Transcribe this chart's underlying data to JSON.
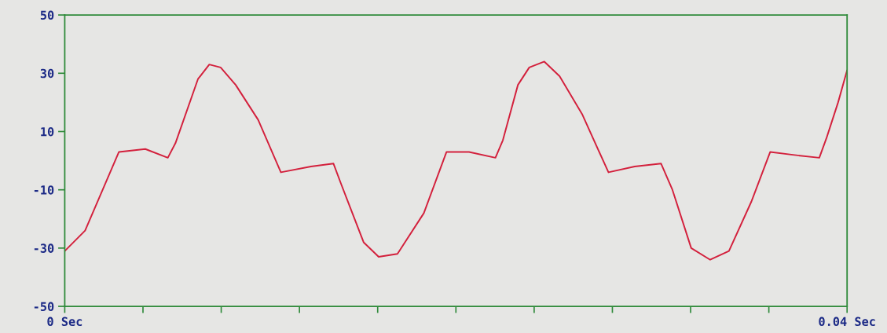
{
  "chart_data": {
    "type": "line",
    "grid": false,
    "marker": "none",
    "line_style": "solid",
    "xlim": [
      0,
      0.04
    ],
    "ylim": [
      -50,
      50
    ],
    "xticks": [
      {
        "value": 0,
        "label": "0 Sec"
      },
      {
        "value": 0.004,
        "label": null
      },
      {
        "value": 0.008,
        "label": null
      },
      {
        "value": 0.012,
        "label": null
      },
      {
        "value": 0.016,
        "label": null
      },
      {
        "value": 0.02,
        "label": null
      },
      {
        "value": 0.024,
        "label": null
      },
      {
        "value": 0.028,
        "label": null
      },
      {
        "value": 0.032,
        "label": null
      },
      {
        "value": 0.036,
        "label": null
      },
      {
        "value": 0.04,
        "label": "0.04 Sec"
      }
    ],
    "yticks": [
      -50,
      -30,
      -10,
      10,
      30,
      50
    ],
    "series": [
      {
        "color": "#d3203c",
        "x": [
          0,
          0.00104,
          0.00277,
          0.00412,
          0.00527,
          0.00566,
          0.00681,
          0.00739,
          0.00797,
          0.00874,
          0.00989,
          0.01105,
          0.01259,
          0.01374,
          0.01413,
          0.01528,
          0.01605,
          0.01701,
          0.01836,
          0.01952,
          0.02067,
          0.02202,
          0.0224,
          0.02317,
          0.02375,
          0.02452,
          0.0253,
          0.02645,
          0.0278,
          0.02914,
          0.03049,
          0.03107,
          0.03203,
          0.033,
          0.03396,
          0.03511,
          0.03607,
          0.03723,
          0.03858,
          0.03896,
          0.03954,
          0.04
        ],
        "values": [
          -31,
          -24,
          3,
          4,
          1,
          6,
          28,
          33,
          32,
          26,
          14,
          -4,
          -2,
          -1,
          -8,
          -28,
          -33,
          -32,
          -18,
          3,
          3,
          1,
          7,
          26,
          32,
          34,
          29,
          16,
          -4,
          -2,
          -1,
          -10,
          -30,
          -34,
          -31,
          -14,
          3,
          2,
          1,
          8,
          20,
          31
        ]
      }
    ]
  }
}
